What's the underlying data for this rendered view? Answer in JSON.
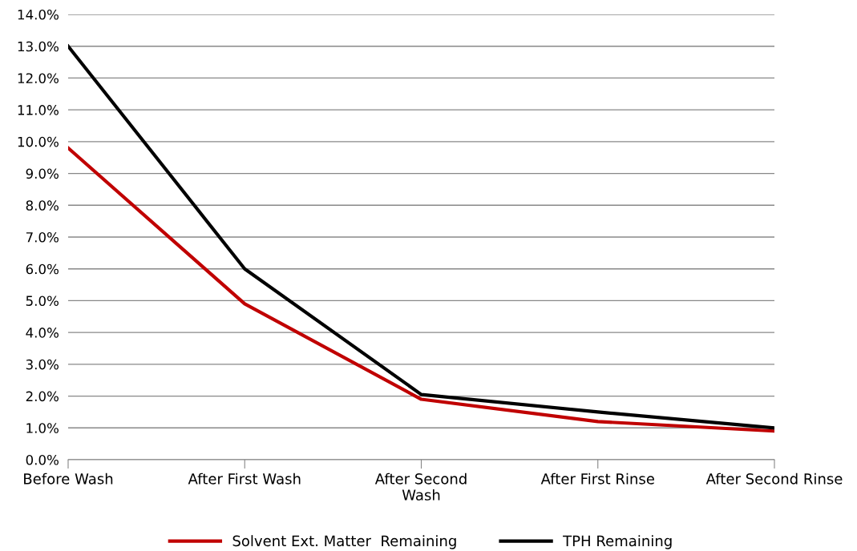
{
  "chart_data": {
    "type": "line",
    "categories": [
      "Before Wash",
      "After First Wash",
      "After Second\nWash",
      "After First Rinse",
      "After Second Rinse"
    ],
    "series": [
      {
        "name": "Solvent Ext. Matter  Remaining",
        "color": "#c00000",
        "values": [
          9.8,
          4.9,
          1.9,
          1.2,
          0.9
        ]
      },
      {
        "name": "TPH Remaining",
        "color": "#000000",
        "values": [
          13.0,
          6.0,
          2.05,
          1.5,
          1.0
        ]
      }
    ],
    "ylim": [
      0,
      14
    ],
    "yticks": [
      {
        "value": 0,
        "label": "0.0%"
      },
      {
        "value": 1,
        "label": "1.0%"
      },
      {
        "value": 2,
        "label": "2.0%"
      },
      {
        "value": 3,
        "label": "3.0%"
      },
      {
        "value": 4,
        "label": "4.0%"
      },
      {
        "value": 5,
        "label": "5.0%"
      },
      {
        "value": 6,
        "label": "6.0%"
      },
      {
        "value": 7,
        "label": "7.0%"
      },
      {
        "value": 8,
        "label": "8.0%"
      },
      {
        "value": 9,
        "label": "9.0%"
      },
      {
        "value": 10,
        "label": "10.0%"
      },
      {
        "value": 11,
        "label": "11.0%"
      },
      {
        "value": 12,
        "label": "12.0%"
      },
      {
        "value": 13,
        "label": "13.0%"
      },
      {
        "value": 14,
        "label": "14.0%"
      }
    ],
    "grid": "y",
    "legend": "bottom",
    "marker": "none",
    "line_style": "solid"
  }
}
